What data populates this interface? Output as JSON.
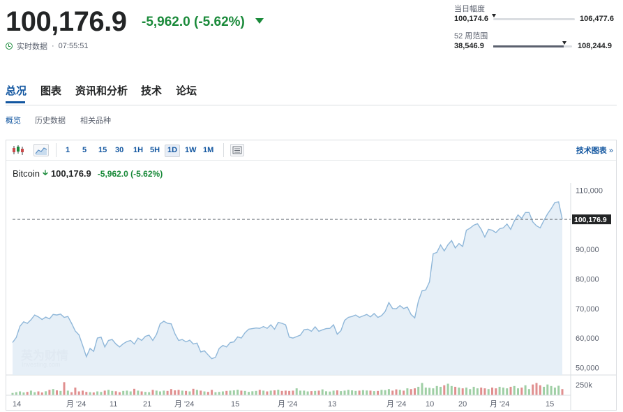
{
  "quote": {
    "last": "100,176.9",
    "change": "-5,962.0",
    "change_pct": "(-5.62%)",
    "realtime_label": "实时数据",
    "time": "07:55:51",
    "direction_icon": "triangle-down-icon",
    "up_color": "#1a8a3a"
  },
  "day_range": {
    "label": "当日幅度",
    "low": "100,174.6",
    "high": "106,477.6",
    "position": 0.0
  },
  "week52_range": {
    "label": "52 周范围",
    "low": "38,546.9",
    "high": "108,244.9",
    "position": 0.89
  },
  "tabs": [
    "总况",
    "图表",
    "资讯和分析",
    "技术",
    "论坛"
  ],
  "active_tab": 0,
  "subtabs": [
    "概览",
    "历史数据",
    "相关品种"
  ],
  "active_subtab": 0,
  "toolbar": {
    "chart_type_icons": [
      "candlestick-icon",
      "area-chart-icon"
    ],
    "intervals": [
      "1",
      "5",
      "15",
      "30",
      "1H",
      "5H",
      "1D",
      "1W",
      "1M"
    ],
    "selected_interval": "1D",
    "settings_icon": "chart-settings-icon",
    "tech_chart_link": "技术图表",
    "tech_chart_arrow": "»"
  },
  "legend": {
    "name": "Bitcoin",
    "arrow_icon": "down-arrow-icon",
    "price": "100,176.9",
    "change": "-5,962.0",
    "change_pct": "(-5.62%)"
  },
  "watermark": {
    "brand_cn": "英为财情",
    "brand_en": "Investing.com"
  },
  "chart_data": {
    "type": "area",
    "series_color": "#8fb7d9",
    "fill_color": "#e3edf6",
    "current_value": 100176.9,
    "current_label": "100,176.9",
    "y_ticks": [
      50000,
      60000,
      70000,
      80000,
      90000,
      100000,
      110000
    ],
    "y_tick_labels": [
      "50,000",
      "60,000",
      "70,000",
      "80,000",
      "90,000",
      "",
      "110,000"
    ],
    "ylim": [
      47500,
      112500
    ],
    "volume_label": "250k",
    "x_tick_labels": [
      "14",
      "月 '24",
      "11",
      "21",
      "月 '24",
      "15",
      "月 '24",
      "13",
      "月 '24",
      "10",
      "20",
      "月 '24",
      "15"
    ],
    "values": [
      58500,
      60200,
      64000,
      65500,
      65000,
      66200,
      67800,
      67200,
      66300,
      67100,
      66500,
      68000,
      67800,
      68100,
      67000,
      67300,
      65000,
      62400,
      61100,
      57500,
      53700,
      56500,
      55500,
      60000,
      60300,
      57000,
      59200,
      59500,
      58000,
      57000,
      58100,
      58800,
      59200,
      58000,
      60000,
      59200,
      60600,
      61000,
      59200,
      61200,
      64800,
      65700,
      65000,
      64800,
      61500,
      59200,
      59500,
      58700,
      59300,
      58000,
      58300,
      55300,
      55700,
      54300,
      53000,
      53500,
      56500,
      57500,
      57000,
      58500,
      58700,
      60400,
      60000,
      61800,
      63000,
      63200,
      63400,
      63300,
      63900,
      63300,
      64500,
      63000,
      65300,
      65000,
      64500,
      60300,
      60000,
      60500,
      61000,
      62800,
      63000,
      62300,
      63800,
      62300,
      62800,
      63200,
      63300,
      64500,
      61300,
      62500,
      66000,
      67000,
      67300,
      67800,
      67000,
      67500,
      68000,
      67200,
      68300,
      67000,
      67600,
      69000,
      72000,
      70000,
      69900,
      71000,
      70000,
      70500,
      68000,
      66800,
      72500,
      76000,
      76300,
      79000,
      88500,
      89000,
      91500,
      89500,
      91600,
      93000,
      90500,
      92000,
      91000,
      96500,
      97200,
      98200,
      98700,
      96800,
      94200,
      96800,
      96500,
      95700,
      97000,
      97300,
      98600,
      96800,
      99600,
      101700,
      100500,
      102500,
      102500,
      99300,
      98000,
      97300,
      99800,
      102000,
      103800,
      105900,
      106100,
      100200
    ]
  },
  "volume_data": [
    0.15,
    0.2,
    0.25,
    0.18,
    0.22,
    0.3,
    0.2,
    0.25,
    0.18,
    0.26,
    0.35,
    0.4,
    0.32,
    0.28,
    0.85,
    0.3,
    0.2,
    0.5,
    0.25,
    0.3,
    0.22,
    0.2,
    0.18,
    0.25,
    0.22,
    0.3,
    0.35,
    0.28,
    0.26,
    0.2,
    0.28,
    0.3,
    0.25,
    0.42,
    0.3,
    0.25,
    0.22,
    0.2,
    0.35,
    0.3,
    0.25,
    0.3,
    0.28,
    0.4,
    0.32,
    0.35,
    0.3,
    0.28,
    0.25,
    0.42,
    0.35,
    0.3,
    0.25,
    0.22,
    0.35,
    0.2,
    0.22,
    0.25,
    0.28,
    0.3,
    0.32,
    0.36,
    0.3,
    0.28,
    0.22,
    0.26,
    0.28,
    0.35,
    0.3,
    0.25,
    0.3,
    0.32,
    0.36,
    0.28,
    0.3,
    0.28,
    0.3,
    0.45,
    0.3,
    0.3,
    0.25,
    0.27,
    0.28,
    0.3,
    0.38,
    0.26,
    0.24,
    0.3,
    0.32,
    0.27,
    0.3,
    0.35,
    0.32,
    0.28,
    0.3,
    0.33,
    0.31,
    0.3,
    0.27,
    0.28,
    0.35,
    0.33,
    0.4,
    0.3,
    0.38,
    0.35,
    0.3,
    0.45,
    0.4,
    0.45,
    0.55,
    0.8,
    0.5,
    0.48,
    0.45,
    0.6,
    0.55,
    0.65,
    0.75,
    0.6,
    0.55,
    0.5,
    0.45,
    0.5,
    0.4,
    0.55,
    0.45,
    0.5,
    0.45,
    0.4,
    0.5,
    0.45,
    0.55,
    0.5,
    0.45,
    0.55,
    0.6,
    0.45,
    0.5,
    0.65,
    0.4,
    0.7,
    0.8,
    0.65,
    0.55,
    0.7,
    0.6,
    0.5,
    0.62,
    0.4
  ]
}
